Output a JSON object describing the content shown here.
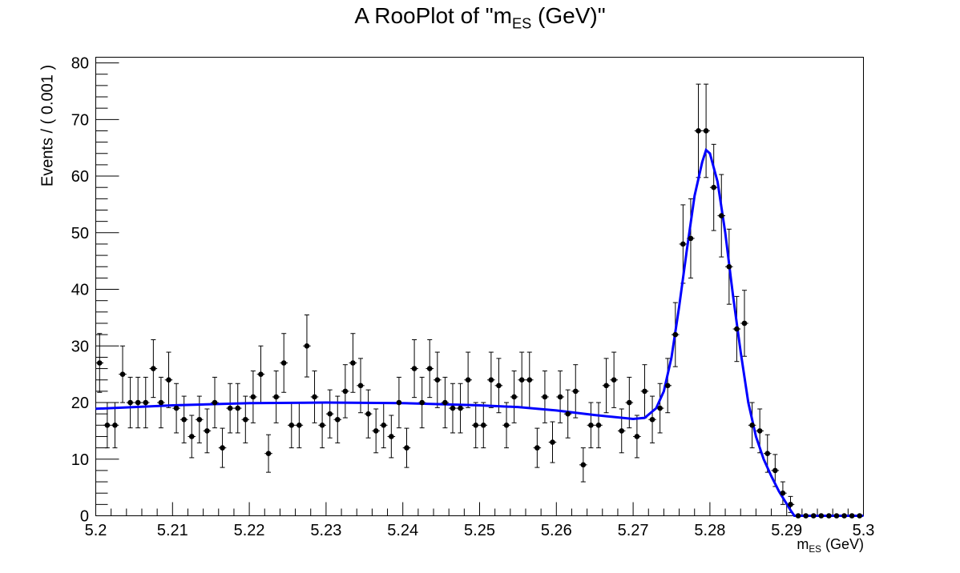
{
  "chart_data": {
    "type": "scatter",
    "title_prefix": "A RooPlot of \"m",
    "title_sub": "ES",
    "title_suffix": " (GeV)\"",
    "xlabel_main": "m",
    "xlabel_sub": "ES",
    "xlabel_suffix": " (GeV)",
    "ylabel": "Events / ( 0.001 )",
    "xlim": [
      5.2,
      5.3
    ],
    "ylim": [
      0,
      81
    ],
    "x_ticks": [
      "5.2",
      "5.21",
      "5.22",
      "5.23",
      "5.24",
      "5.25",
      "5.26",
      "5.27",
      "5.28",
      "5.29",
      "5.3"
    ],
    "y_ticks": [
      "0",
      "10",
      "20",
      "30",
      "40",
      "50",
      "60",
      "70",
      "80"
    ],
    "grid": false,
    "legend": "none",
    "series": [
      {
        "kind": "histogram-points-with-errors",
        "x_start": 5.2005,
        "x_step": 0.001,
        "values": [
          27,
          16,
          16,
          25,
          20,
          20,
          20,
          26,
          20,
          24,
          19,
          17,
          14,
          17,
          15,
          20,
          12,
          19,
          19,
          17,
          21,
          25,
          11,
          21,
          27,
          16,
          16,
          30,
          21,
          16,
          18,
          17,
          22,
          27,
          23,
          18,
          15,
          16,
          14,
          20,
          12,
          26,
          20,
          26,
          24,
          20,
          19,
          19,
          24,
          16,
          16,
          24,
          23,
          16,
          21,
          24,
          24,
          12,
          21,
          13,
          21,
          18,
          22,
          9,
          16,
          16,
          23,
          24,
          15,
          20,
          14,
          22,
          17,
          19,
          23,
          32,
          48,
          49,
          68,
          68,
          58,
          53,
          44,
          33,
          34,
          16,
          15,
          11,
          8,
          4,
          2,
          0,
          0,
          0,
          0,
          0,
          0,
          0,
          0,
          0
        ],
        "color": "#000000"
      },
      {
        "kind": "fit-curve",
        "color": "#0000ff",
        "x": [
          5.2,
          5.21,
          5.22,
          5.23,
          5.24,
          5.25,
          5.255,
          5.26,
          5.265,
          5.27,
          5.2715,
          5.273,
          5.274,
          5.275,
          5.276,
          5.277,
          5.278,
          5.279,
          5.2795,
          5.28,
          5.281,
          5.282,
          5.283,
          5.284,
          5.285,
          5.286,
          5.287,
          5.288,
          5.289,
          5.2905,
          5.291,
          5.3
        ],
        "y": [
          18.9,
          19.5,
          19.9,
          20.0,
          19.9,
          19.5,
          19.2,
          18.6,
          17.8,
          17.1,
          17.3,
          19.0,
          22.0,
          28.0,
          37.0,
          47.0,
          56.5,
          62.5,
          64.6,
          64.0,
          59.0,
          50.0,
          39.0,
          29.0,
          20.0,
          14.0,
          10.0,
          7.0,
          4.3,
          1.0,
          0,
          0
        ]
      }
    ]
  }
}
